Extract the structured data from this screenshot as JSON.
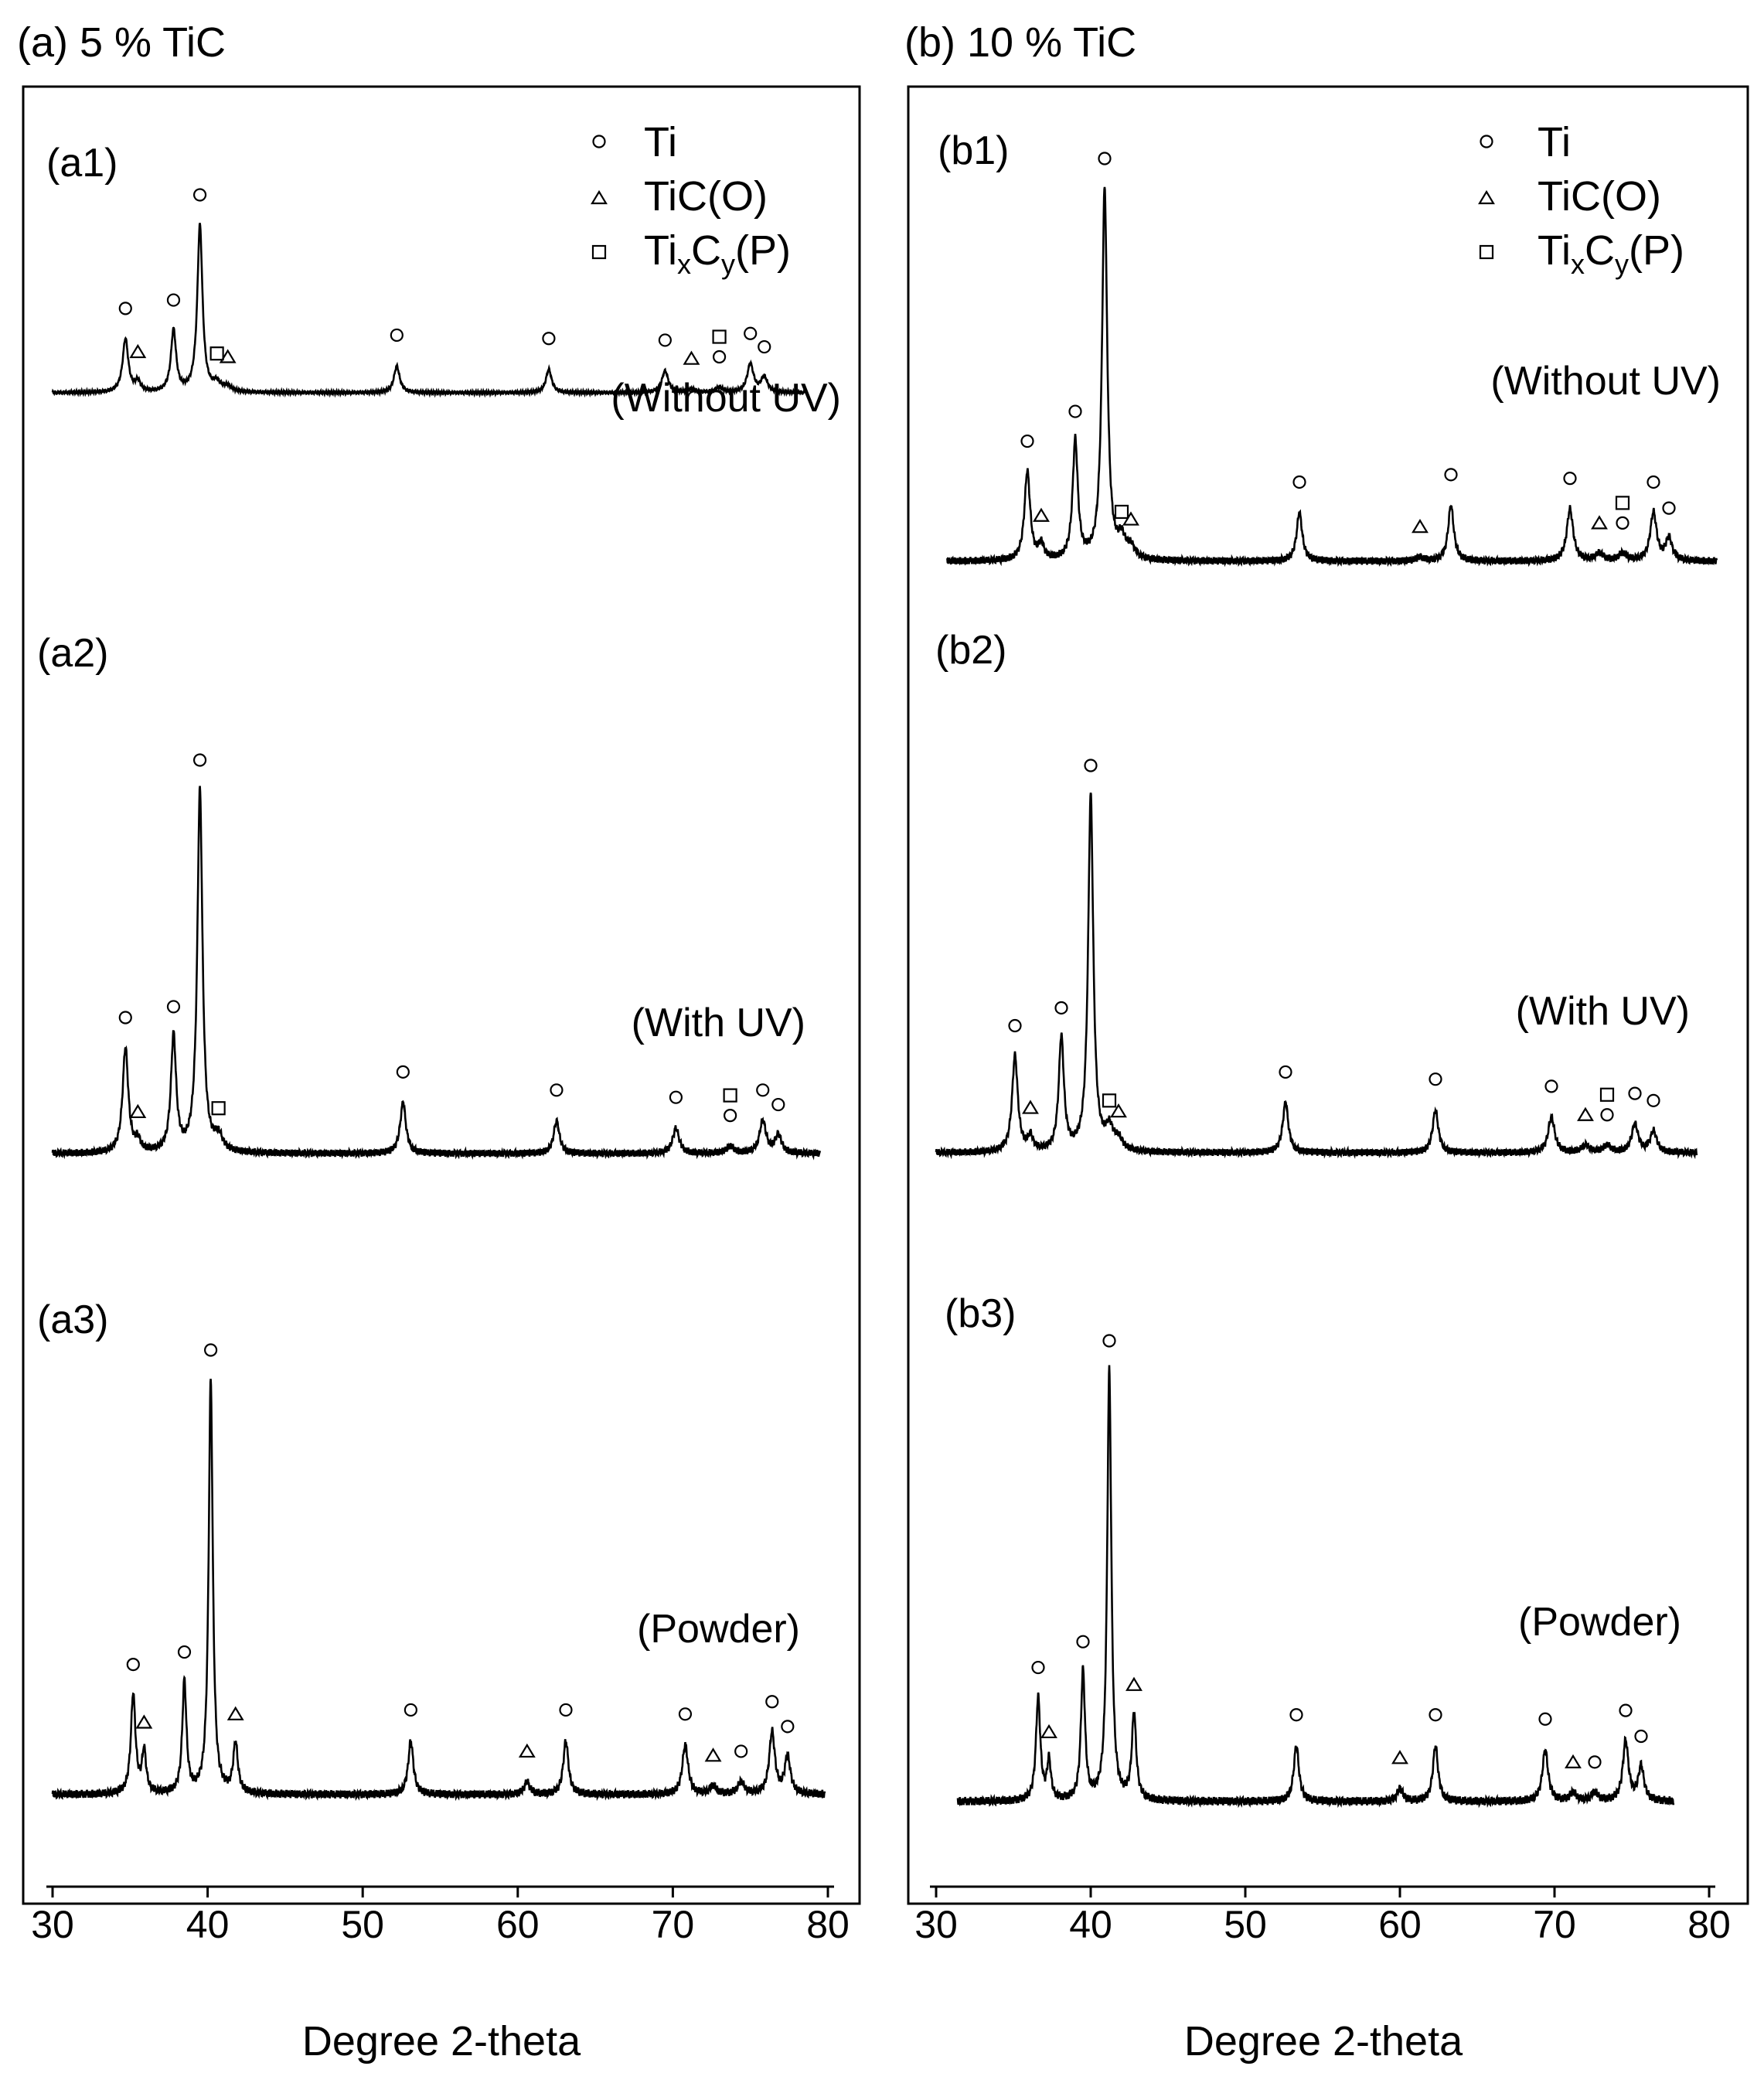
{
  "chart_data": [
    {
      "type": "line",
      "title": "(a) 5 % TiC",
      "xlabel": "Degree 2-theta",
      "ylabel": "",
      "xlim": [
        28,
        82
      ],
      "xticks": [
        30,
        40,
        50,
        60,
        70,
        80
      ],
      "grid": false,
      "legend": {
        "placement": "top-right",
        "items": [
          {
            "marker": "circle",
            "label": "Ti"
          },
          {
            "marker": "triangle",
            "label": "TiC(O)"
          },
          {
            "marker": "square",
            "label": "TixCy(P)"
          }
        ]
      },
      "series": [
        {
          "panel": "(a1)",
          "condition": "(Without UV)",
          "x_range": [
            30,
            78.5
          ],
          "peaks": [
            {
              "x": 34.7,
              "h": 0.32,
              "w": 0.22,
              "m": [
                "circle"
              ]
            },
            {
              "x": 35.5,
              "h": 0.06,
              "w": 0.2,
              "m": [
                "triangle"
              ]
            },
            {
              "x": 37.8,
              "h": 0.37,
              "w": 0.2,
              "m": [
                "circle"
              ]
            },
            {
              "x": 39.5,
              "h": 1.0,
              "w": 0.2,
              "m": [
                "circle"
              ]
            },
            {
              "x": 40.6,
              "h": 0.05,
              "w": 0.3,
              "m": [
                "square"
              ]
            },
            {
              "x": 41.3,
              "h": 0.03,
              "w": 0.3,
              "m": [
                "triangle"
              ]
            },
            {
              "x": 52.2,
              "h": 0.16,
              "w": 0.22,
              "m": [
                "circle"
              ]
            },
            {
              "x": 62.0,
              "h": 0.14,
              "w": 0.22,
              "m": [
                "circle"
              ]
            },
            {
              "x": 69.5,
              "h": 0.13,
              "w": 0.25,
              "m": [
                "circle"
              ]
            },
            {
              "x": 71.2,
              "h": 0.02,
              "w": 0.3,
              "m": [
                "triangle"
              ]
            },
            {
              "x": 73.0,
              "h": 0.03,
              "w": 0.3,
              "m": [
                "square",
                "circle"
              ]
            },
            {
              "x": 75.0,
              "h": 0.17,
              "w": 0.25,
              "m": [
                "circle"
              ]
            },
            {
              "x": 75.9,
              "h": 0.09,
              "w": 0.25,
              "m": [
                "circle"
              ]
            }
          ]
        },
        {
          "panel": "(a2)",
          "condition": "(With UV)",
          "x_range": [
            30,
            79.5
          ],
          "peaks": [
            {
              "x": 34.7,
              "h": 0.29,
              "w": 0.22,
              "m": [
                "circle"
              ]
            },
            {
              "x": 35.5,
              "h": 0.03,
              "w": 0.2,
              "m": [
                "triangle"
              ]
            },
            {
              "x": 37.8,
              "h": 0.32,
              "w": 0.2,
              "m": [
                "circle"
              ]
            },
            {
              "x": 39.5,
              "h": 1.0,
              "w": 0.2,
              "m": [
                "circle"
              ]
            },
            {
              "x": 40.7,
              "h": 0.04,
              "w": 0.3,
              "m": [
                "square"
              ]
            },
            {
              "x": 52.6,
              "h": 0.14,
              "w": 0.22,
              "m": [
                "circle"
              ]
            },
            {
              "x": 62.5,
              "h": 0.09,
              "w": 0.22,
              "m": [
                "circle"
              ]
            },
            {
              "x": 70.2,
              "h": 0.07,
              "w": 0.25,
              "m": [
                "circle"
              ]
            },
            {
              "x": 73.7,
              "h": 0.02,
              "w": 0.3,
              "m": [
                "square",
                "circle"
              ]
            },
            {
              "x": 75.8,
              "h": 0.09,
              "w": 0.25,
              "m": [
                "circle"
              ]
            },
            {
              "x": 76.8,
              "h": 0.05,
              "w": 0.25,
              "m": [
                "circle"
              ]
            }
          ]
        },
        {
          "panel": "(a3)",
          "condition": "(Powder)",
          "x_range": [
            30,
            79.8
          ],
          "peaks": [
            {
              "x": 35.2,
              "h": 0.24,
              "w": 0.18,
              "m": [
                "circle"
              ]
            },
            {
              "x": 35.9,
              "h": 0.1,
              "w": 0.16,
              "m": [
                "triangle"
              ]
            },
            {
              "x": 38.5,
              "h": 0.27,
              "w": 0.16,
              "m": [
                "circle"
              ]
            },
            {
              "x": 40.2,
              "h": 1.0,
              "w": 0.16,
              "m": [
                "circle"
              ]
            },
            {
              "x": 41.8,
              "h": 0.12,
              "w": 0.18,
              "m": [
                "triangle"
              ]
            },
            {
              "x": 53.1,
              "h": 0.13,
              "w": 0.2,
              "m": [
                "circle"
              ]
            },
            {
              "x": 60.6,
              "h": 0.03,
              "w": 0.22,
              "m": [
                "triangle"
              ]
            },
            {
              "x": 63.1,
              "h": 0.13,
              "w": 0.2,
              "m": [
                "circle"
              ]
            },
            {
              "x": 70.8,
              "h": 0.12,
              "w": 0.22,
              "m": [
                "circle"
              ]
            },
            {
              "x": 72.6,
              "h": 0.02,
              "w": 0.25,
              "m": [
                "triangle"
              ]
            },
            {
              "x": 74.4,
              "h": 0.03,
              "w": 0.25,
              "m": [
                "circle"
              ]
            },
            {
              "x": 76.4,
              "h": 0.15,
              "w": 0.22,
              "m": [
                "circle"
              ]
            },
            {
              "x": 77.4,
              "h": 0.09,
              "w": 0.22,
              "m": [
                "circle"
              ]
            }
          ]
        }
      ]
    },
    {
      "type": "line",
      "title": "(b) 10 % TiC",
      "xlabel": "Degree 2-theta",
      "ylabel": "",
      "xlim": [
        28,
        82
      ],
      "xticks": [
        30,
        40,
        50,
        60,
        70,
        80
      ],
      "grid": false,
      "legend": {
        "placement": "top-right",
        "items": [
          {
            "marker": "circle",
            "label": "Ti"
          },
          {
            "marker": "triangle",
            "label": "TiC(O)"
          },
          {
            "marker": "square",
            "label": "TixCy(P)"
          }
        ]
      },
      "series": [
        {
          "panel": "(b1)",
          "condition": "(Without UV)",
          "x_range": [
            30.7,
            80.5
          ],
          "peaks": [
            {
              "x": 35.9,
              "h": 0.24,
              "w": 0.22,
              "m": [
                "circle"
              ]
            },
            {
              "x": 36.8,
              "h": 0.04,
              "w": 0.2,
              "m": [
                "triangle"
              ]
            },
            {
              "x": 39.0,
              "h": 0.32,
              "w": 0.2,
              "m": [
                "circle"
              ]
            },
            {
              "x": 40.9,
              "h": 1.0,
              "w": 0.2,
              "m": [
                "circle"
              ]
            },
            {
              "x": 42.0,
              "h": 0.05,
              "w": 0.3,
              "m": [
                "square"
              ]
            },
            {
              "x": 42.6,
              "h": 0.03,
              "w": 0.3,
              "m": [
                "triangle"
              ]
            },
            {
              "x": 53.5,
              "h": 0.13,
              "w": 0.22,
              "m": [
                "circle"
              ]
            },
            {
              "x": 61.3,
              "h": 0.01,
              "w": 0.3,
              "m": [
                "triangle"
              ]
            },
            {
              "x": 63.3,
              "h": 0.15,
              "w": 0.22,
              "m": [
                "circle"
              ]
            },
            {
              "x": 71.0,
              "h": 0.14,
              "w": 0.25,
              "m": [
                "circle"
              ]
            },
            {
              "x": 72.9,
              "h": 0.02,
              "w": 0.3,
              "m": [
                "triangle"
              ]
            },
            {
              "x": 74.4,
              "h": 0.02,
              "w": 0.3,
              "m": [
                "square",
                "circle"
              ]
            },
            {
              "x": 76.4,
              "h": 0.13,
              "w": 0.25,
              "m": [
                "circle"
              ]
            },
            {
              "x": 77.4,
              "h": 0.06,
              "w": 0.25,
              "m": [
                "circle"
              ]
            }
          ]
        },
        {
          "panel": "(b2)",
          "condition": "(With UV)",
          "x_range": [
            30,
            79.2
          ],
          "peaks": [
            {
              "x": 35.1,
              "h": 0.27,
              "w": 0.22,
              "m": [
                "circle"
              ]
            },
            {
              "x": 36.1,
              "h": 0.04,
              "w": 0.2,
              "m": [
                "triangle"
              ]
            },
            {
              "x": 38.1,
              "h": 0.32,
              "w": 0.2,
              "m": [
                "circle"
              ]
            },
            {
              "x": 40.0,
              "h": 1.0,
              "w": 0.2,
              "m": [
                "circle"
              ]
            },
            {
              "x": 41.2,
              "h": 0.06,
              "w": 0.3,
              "m": [
                "square"
              ]
            },
            {
              "x": 41.8,
              "h": 0.03,
              "w": 0.3,
              "m": [
                "triangle"
              ]
            },
            {
              "x": 52.6,
              "h": 0.14,
              "w": 0.22,
              "m": [
                "circle"
              ]
            },
            {
              "x": 62.3,
              "h": 0.12,
              "w": 0.22,
              "m": [
                "circle"
              ]
            },
            {
              "x": 69.8,
              "h": 0.1,
              "w": 0.25,
              "m": [
                "circle"
              ]
            },
            {
              "x": 72.0,
              "h": 0.02,
              "w": 0.3,
              "m": [
                "triangle"
              ]
            },
            {
              "x": 73.4,
              "h": 0.02,
              "w": 0.3,
              "m": [
                "square",
                "circle"
              ]
            },
            {
              "x": 75.2,
              "h": 0.08,
              "w": 0.25,
              "m": [
                "circle"
              ]
            },
            {
              "x": 76.4,
              "h": 0.06,
              "w": 0.25,
              "m": [
                "circle"
              ]
            }
          ]
        },
        {
          "panel": "(b3)",
          "condition": "(Powder)",
          "x_range": [
            31.4,
            77.7
          ],
          "peaks": [
            {
              "x": 36.6,
              "h": 0.24,
              "w": 0.17,
              "m": [
                "circle"
              ]
            },
            {
              "x": 37.3,
              "h": 0.09,
              "w": 0.15,
              "m": [
                "triangle"
              ]
            },
            {
              "x": 39.5,
              "h": 0.3,
              "w": 0.16,
              "m": [
                "circle"
              ]
            },
            {
              "x": 41.2,
              "h": 1.0,
              "w": 0.16,
              "m": [
                "circle"
              ]
            },
            {
              "x": 42.8,
              "h": 0.2,
              "w": 0.17,
              "m": [
                "triangle"
              ]
            },
            {
              "x": 53.3,
              "h": 0.13,
              "w": 0.2,
              "m": [
                "circle"
              ]
            },
            {
              "x": 60.0,
              "h": 0.03,
              "w": 0.22,
              "m": [
                "triangle"
              ]
            },
            {
              "x": 62.3,
              "h": 0.13,
              "w": 0.2,
              "m": [
                "circle"
              ]
            },
            {
              "x": 69.4,
              "h": 0.12,
              "w": 0.22,
              "m": [
                "circle"
              ]
            },
            {
              "x": 71.2,
              "h": 0.02,
              "w": 0.25,
              "m": [
                "triangle"
              ]
            },
            {
              "x": 72.6,
              "h": 0.02,
              "w": 0.25,
              "m": [
                "circle"
              ]
            },
            {
              "x": 74.6,
              "h": 0.14,
              "w": 0.22,
              "m": [
                "circle"
              ]
            },
            {
              "x": 75.6,
              "h": 0.08,
              "w": 0.22,
              "m": [
                "circle"
              ]
            }
          ]
        }
      ]
    }
  ]
}
